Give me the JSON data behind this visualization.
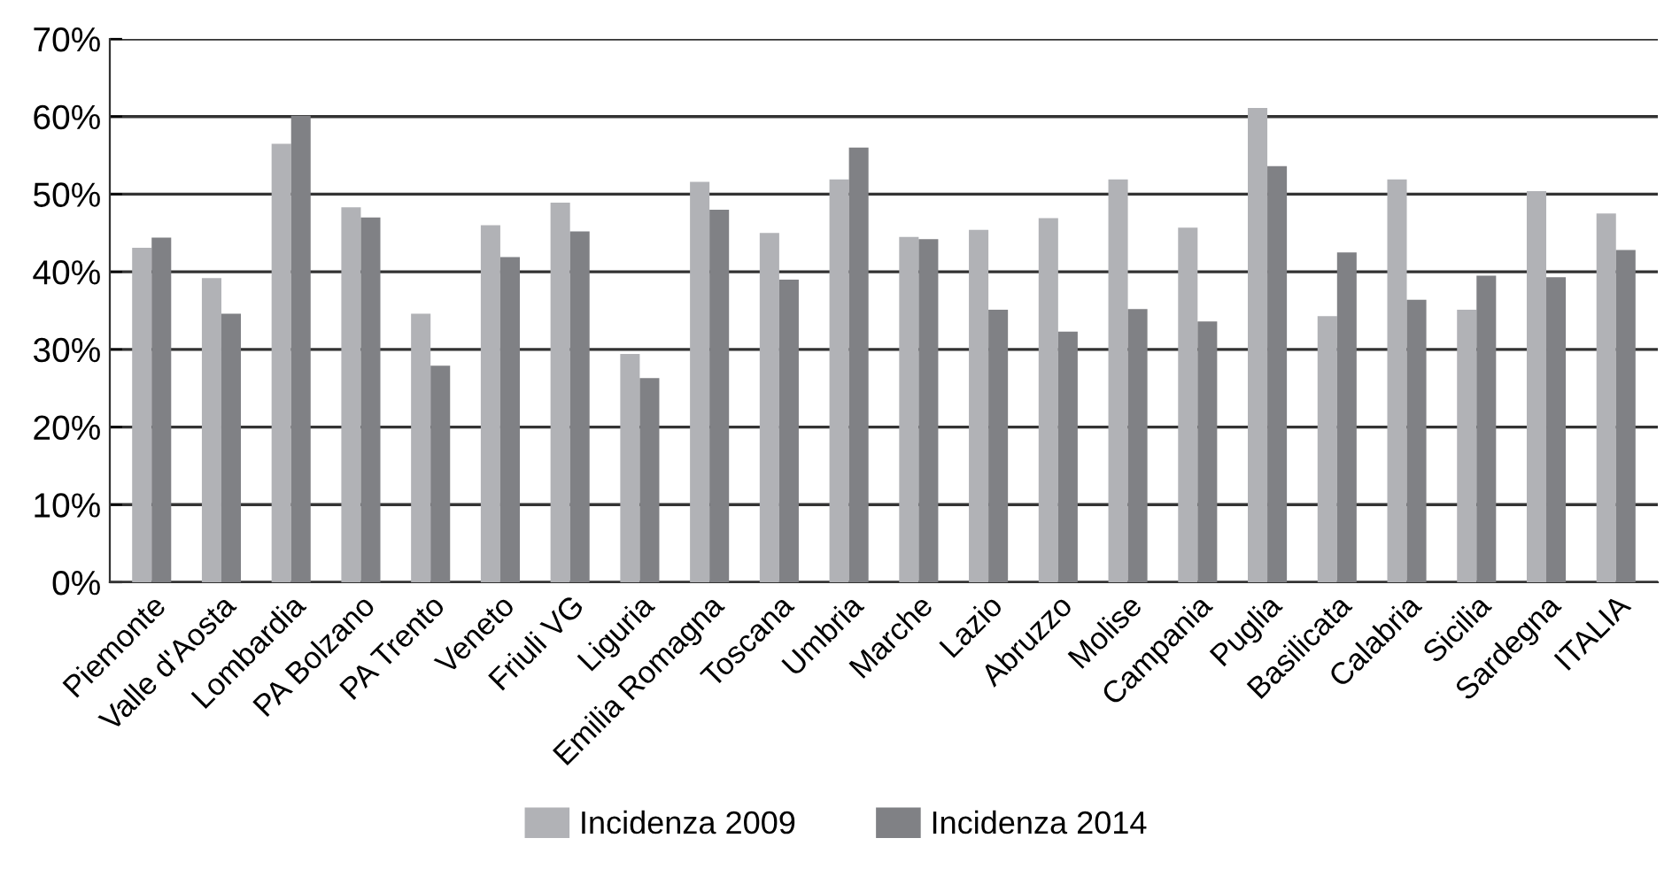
{
  "chart_data": {
    "type": "bar",
    "categories": [
      "Piemonte",
      "Valle d'Aosta",
      "Lombardia",
      "PA Bolzano",
      "PA Trento",
      "Veneto",
      "Friuli VG",
      "Liguria",
      "Emilia Romagna",
      "Toscana",
      "Umbria",
      "Marche",
      "Lazio",
      "Abruzzo",
      "Molise",
      "Campania",
      "Puglia",
      "Basilicata",
      "Calabria",
      "Sicilia",
      "Sardegna",
      "ITALIA"
    ],
    "series": [
      {
        "name": "Incidenza 2009",
        "color": "#b1b2b6",
        "values": [
          43.1,
          39.2,
          56.5,
          48.3,
          34.6,
          46.0,
          48.9,
          29.4,
          51.6,
          45.0,
          51.9,
          44.5,
          45.4,
          46.9,
          51.9,
          45.7,
          61.1,
          34.3,
          51.9,
          35.1,
          50.4,
          47.5
        ]
      },
      {
        "name": "Incidenza 2014",
        "color": "#808185",
        "values": [
          44.4,
          34.6,
          60.1,
          47.0,
          27.9,
          41.9,
          45.2,
          26.3,
          48.0,
          39.0,
          56.0,
          44.2,
          35.1,
          32.3,
          35.2,
          33.6,
          53.6,
          42.5,
          36.4,
          39.5,
          39.3,
          42.8
        ]
      }
    ],
    "ylim": [
      0,
      70
    ],
    "yticks": [
      {
        "value": 0,
        "label": "0%"
      },
      {
        "value": 10,
        "label": "10%"
      },
      {
        "value": 20,
        "label": "20%"
      },
      {
        "value": 30,
        "label": "30%"
      },
      {
        "value": 40,
        "label": "40%"
      },
      {
        "value": 50,
        "label": "50%"
      },
      {
        "value": 60,
        "label": "60%"
      },
      {
        "value": 70,
        "label": "70%"
      }
    ],
    "grid": "y",
    "legend": "bottom"
  }
}
